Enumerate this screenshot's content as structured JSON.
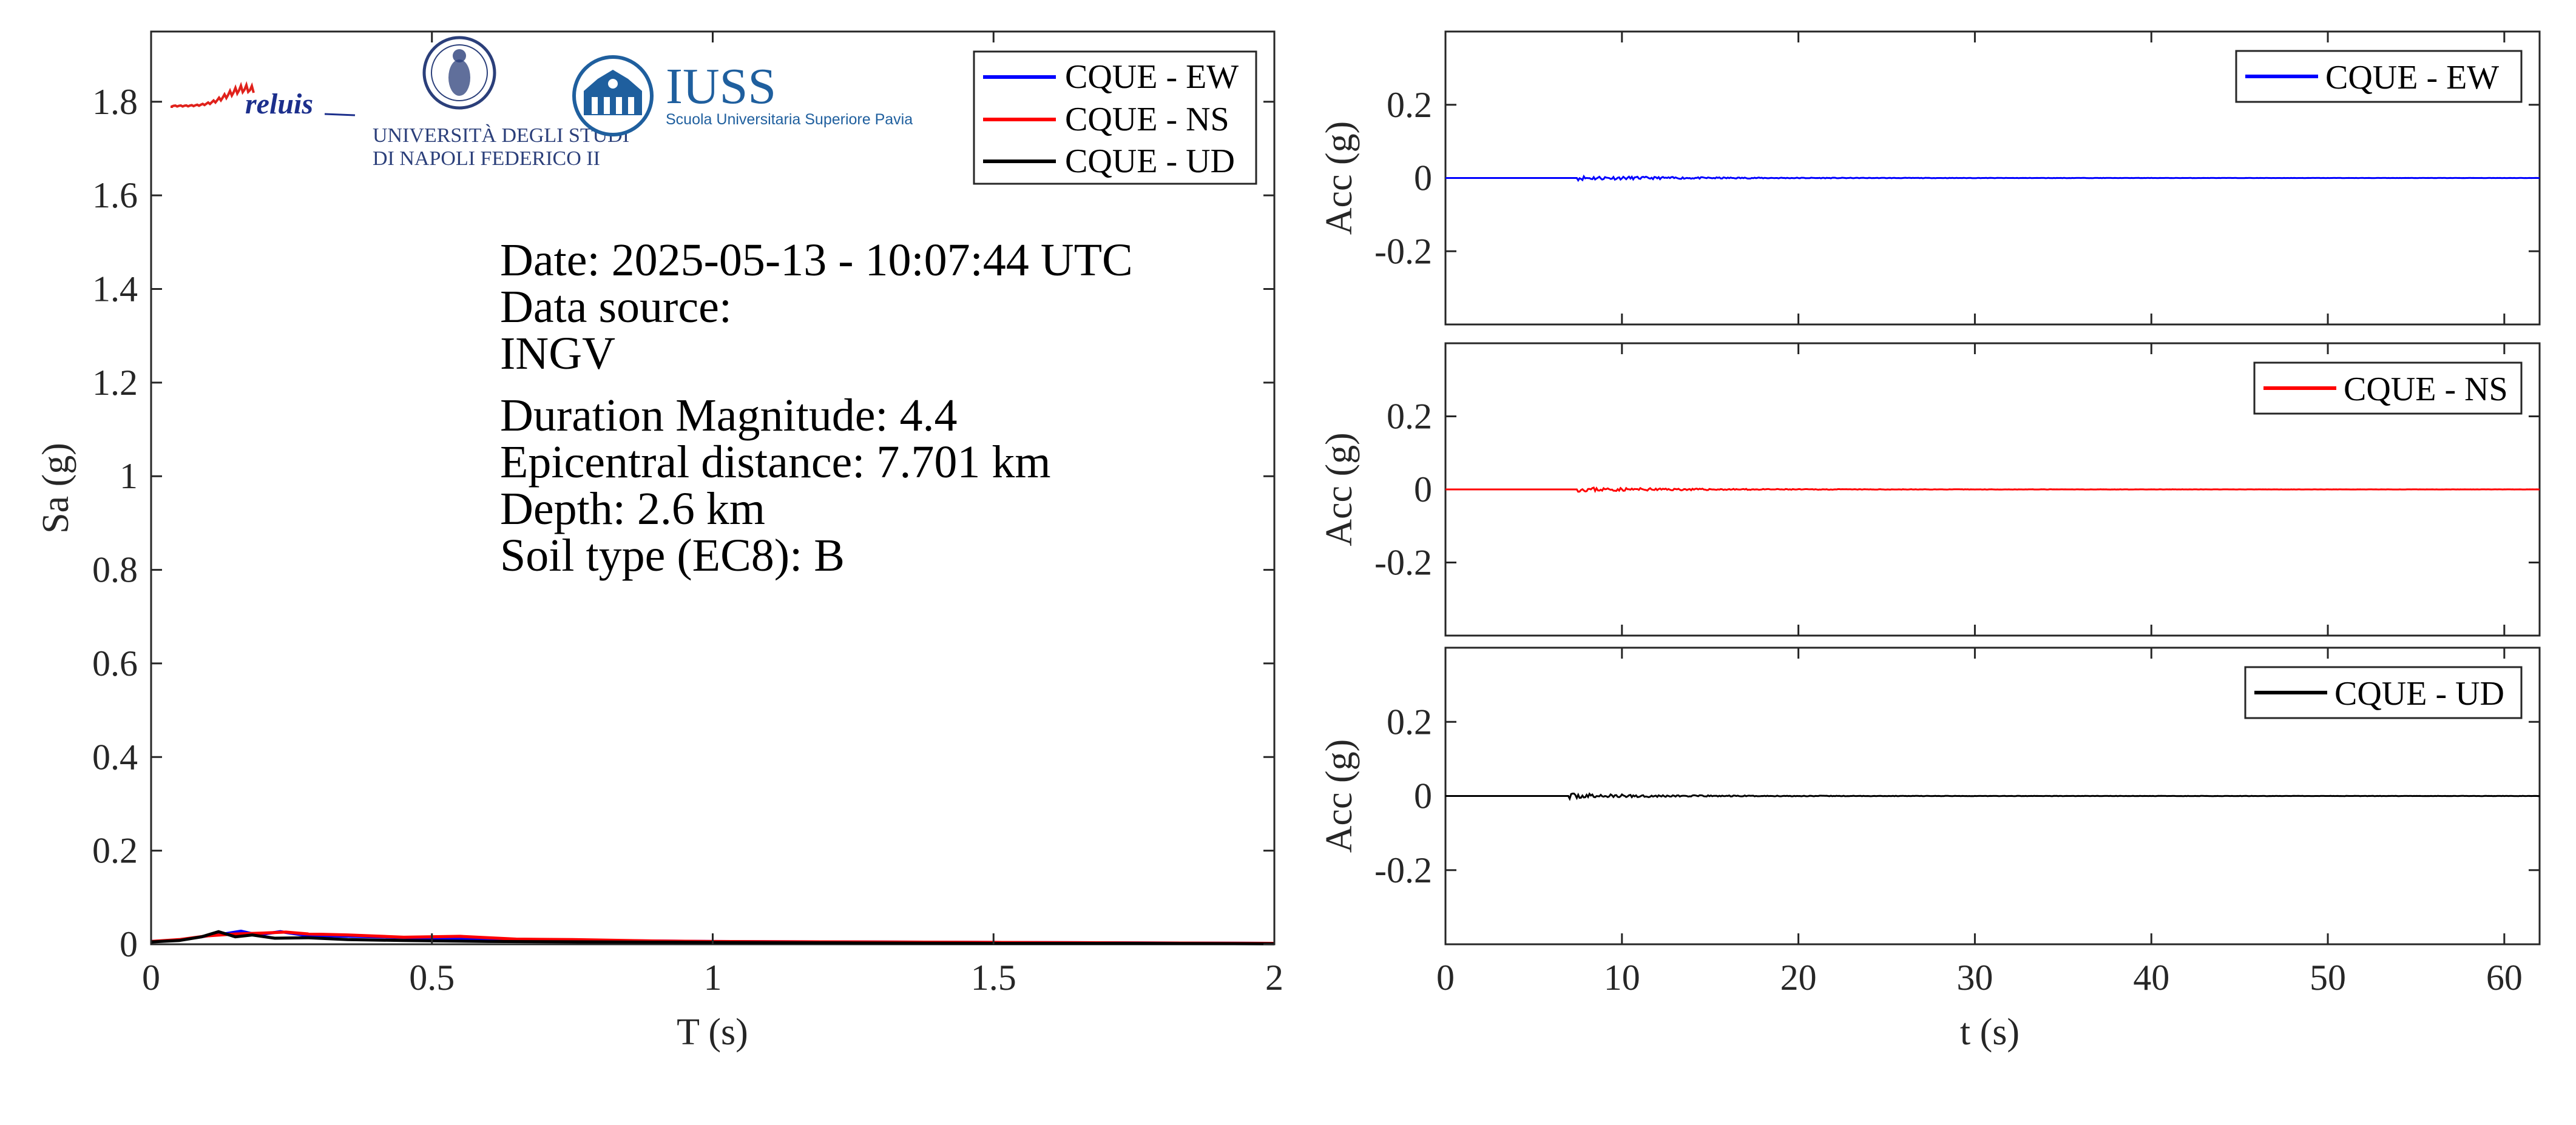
{
  "info": {
    "date": "Date: 2025-05-13 - 10:07:44 UTC",
    "data_source_label": "Data source:",
    "data_source_value": "INGV",
    "magnitude": "Duration Magnitude: 4.4",
    "distance": "Epicentral distance: 7.701 km",
    "depth": "Depth: 2.6 km",
    "soil": "Soil type (EC8): B"
  },
  "logos": {
    "reluis": "reluis",
    "unina_line1": "UNIVERSITÀ DEGLI STUDI",
    "unina_line2": "DI NAPOLI FEDERICO II",
    "iuss": "IUSS",
    "iuss_sub": "Scuola Universitaria Superiore Pavia"
  },
  "colors": {
    "ew": "#0000ff",
    "ns": "#ff0000",
    "ud": "#000000",
    "axis": "#262626"
  },
  "chart_data": [
    {
      "type": "line",
      "xlabel": "T (s)",
      "ylabel": "Sa (g)",
      "xlim": [
        0,
        2
      ],
      "ylim": [
        0,
        1.95
      ],
      "xticks": [
        0,
        0.5,
        1,
        1.5,
        2
      ],
      "xtick_labels": [
        "0",
        "0.5",
        "1",
        "1.5",
        "2"
      ],
      "yticks": [
        0,
        0.2,
        0.4,
        0.6,
        0.8,
        1,
        1.2,
        1.4,
        1.6,
        1.8
      ],
      "ytick_labels": [
        "0",
        "0.2",
        "0.4",
        "0.6",
        "0.8",
        "1",
        "1.2",
        "1.4",
        "1.6",
        "1.8"
      ],
      "grid": false,
      "legend": "top-right",
      "series": [
        {
          "name": "CQUE - EW",
          "color": "#0000ff",
          "x": [
            0,
            0.05,
            0.1,
            0.13,
            0.16,
            0.19,
            0.23,
            0.27,
            0.32,
            0.4,
            0.5,
            0.6,
            0.8,
            1.0,
            1.25,
            1.5,
            1.75,
            2.0
          ],
          "y": [
            0.006,
            0.009,
            0.018,
            0.022,
            0.028,
            0.02,
            0.027,
            0.02,
            0.018,
            0.016,
            0.013,
            0.011,
            0.008,
            0.006,
            0.005,
            0.004,
            0.003,
            0.002
          ]
        },
        {
          "name": "CQUE - NS",
          "color": "#ff0000",
          "x": [
            0,
            0.05,
            0.1,
            0.15,
            0.2,
            0.24,
            0.28,
            0.35,
            0.45,
            0.55,
            0.65,
            0.75,
            0.9,
            1.0,
            1.25,
            1.5,
            1.75,
            2.0
          ],
          "y": [
            0.006,
            0.01,
            0.018,
            0.022,
            0.024,
            0.026,
            0.022,
            0.02,
            0.015,
            0.017,
            0.011,
            0.01,
            0.007,
            0.006,
            0.005,
            0.004,
            0.003,
            0.002
          ]
        },
        {
          "name": "CQUE - UD",
          "color": "#000000",
          "x": [
            0,
            0.05,
            0.09,
            0.12,
            0.15,
            0.18,
            0.22,
            0.28,
            0.35,
            0.45,
            0.6,
            0.8,
            1.0,
            1.25,
            1.5,
            1.75,
            2.0
          ],
          "y": [
            0.005,
            0.008,
            0.016,
            0.027,
            0.016,
            0.02,
            0.013,
            0.014,
            0.01,
            0.008,
            0.006,
            0.005,
            0.004,
            0.003,
            0.002,
            0.002,
            0.001
          ]
        }
      ]
    },
    {
      "type": "line",
      "ylabel": "Acc (g)",
      "xlim": [
        0,
        62
      ],
      "ylim": [
        -0.4,
        0.4
      ],
      "yticks": [
        -0.2,
        0,
        0.2
      ],
      "ytick_labels": [
        "-0.2",
        "0",
        "0.2"
      ],
      "grid": false,
      "legend": "top-right",
      "series": [
        {
          "name": "CQUE - EW",
          "color": "#0000ff",
          "signal_start": 7.5,
          "peak": 0.006,
          "decay": 6,
          "seed": 11
        }
      ]
    },
    {
      "type": "line",
      "ylabel": "Acc (g)",
      "xlim": [
        0,
        62
      ],
      "ylim": [
        -0.4,
        0.4
      ],
      "yticks": [
        -0.2,
        0,
        0.2
      ],
      "ytick_labels": [
        "-0.2",
        "0",
        "0.2"
      ],
      "grid": false,
      "legend": "top-right",
      "series": [
        {
          "name": "CQUE - NS",
          "color": "#ff0000",
          "signal_start": 7.5,
          "peak": 0.006,
          "decay": 6,
          "seed": 23
        }
      ]
    },
    {
      "type": "line",
      "xlabel": "t (s)",
      "ylabel": "Acc (g)",
      "xlim": [
        0,
        62
      ],
      "ylim": [
        -0.4,
        0.4
      ],
      "xticks": [
        0,
        10,
        20,
        30,
        40,
        50,
        60
      ],
      "xtick_labels": [
        "0",
        "10",
        "20",
        "30",
        "40",
        "50",
        "60"
      ],
      "yticks": [
        -0.2,
        0,
        0.2
      ],
      "ytick_labels": [
        "-0.2",
        "0",
        "0.2"
      ],
      "grid": false,
      "legend": "top-right",
      "series": [
        {
          "name": "CQUE - UD",
          "color": "#000000",
          "signal_start": 7.0,
          "peak": 0.007,
          "decay": 5,
          "seed": 37
        }
      ]
    }
  ]
}
